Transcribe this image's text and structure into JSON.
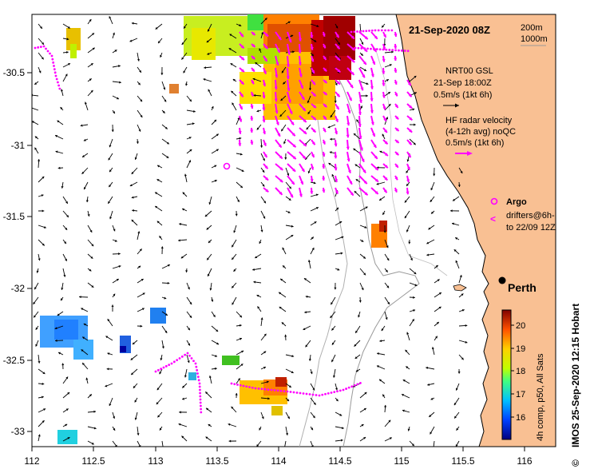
{
  "map": {
    "title": "21-Sep-2020 08Z",
    "depth_legend": {
      "shallow": "200m",
      "deep": "1000m"
    },
    "model_legend": {
      "name": "NRT00 GSL",
      "time": "21-Sep 18:00Z",
      "scale": "0.5m/s (1kt 6h)"
    },
    "radar_legend": {
      "line1": "HF radar velocity",
      "line2": "(4-12h avg) noQC",
      "scale": "0.5m/s (1kt 6h)"
    },
    "argo_label": "Argo",
    "drifter_label_1": "drifters@6h-",
    "drifter_label_2": "to 22/09 12Z",
    "city": "Perth",
    "credit": "IMOS 25-Sep-2020 12:15 Hobart",
    "credit_symbol": "©",
    "colorbar_label": "4h comp, p50, All Sats",
    "colorbar_ticks": [
      "20",
      "19",
      "18",
      "17",
      "16"
    ],
    "x_ticks": [
      "112",
      "112.5",
      "113",
      "113.5",
      "114",
      "114.5",
      "115",
      "115.5",
      "116"
    ],
    "y_ticks": [
      "-30.5",
      "-31",
      "-31.5",
      "-32",
      "-32.5",
      "-33"
    ],
    "colors": {
      "land": "#f9c093",
      "radar": "#ff00ff",
      "coast": "#000000",
      "isobath": "#9a9a9a"
    }
  }
}
